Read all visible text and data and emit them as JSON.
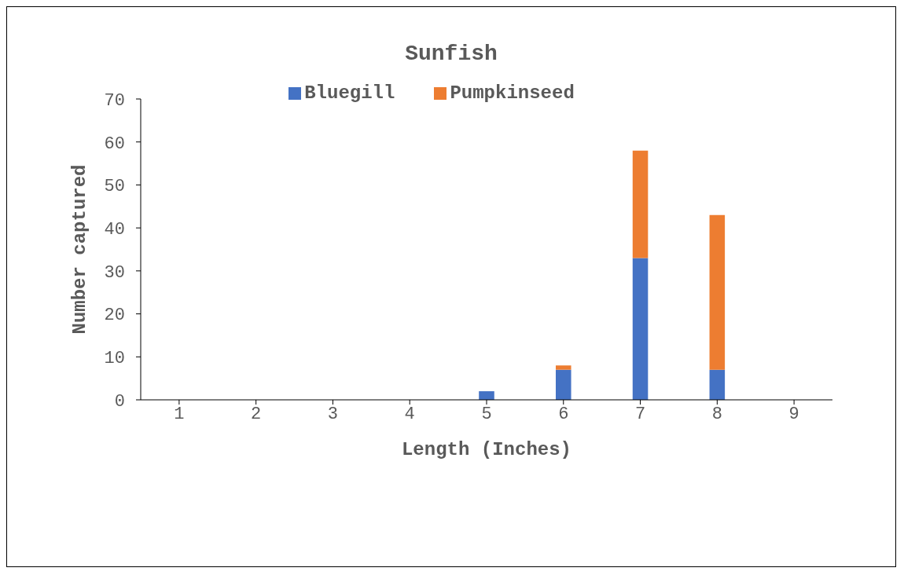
{
  "chart_data": {
    "type": "bar",
    "title": "Sunfish",
    "xlabel": "Length (Inches)",
    "ylabel": "Number captured",
    "categories": [
      "1",
      "2",
      "3",
      "4",
      "5",
      "6",
      "7",
      "8",
      "9"
    ],
    "stacked": true,
    "series": [
      {
        "name": "Bluegill",
        "color": "#4472c4",
        "values": [
          0,
          0,
          0,
          0,
          2,
          7,
          33,
          7,
          0
        ]
      },
      {
        "name": "Pumpkinseed",
        "color": "#ed7d31",
        "values": [
          0,
          0,
          0,
          0,
          0,
          1,
          25,
          36,
          0
        ]
      }
    ],
    "ylim": [
      0,
      70
    ],
    "yticks": [
      0,
      10,
      20,
      30,
      40,
      50,
      60,
      70
    ],
    "grid": false,
    "legend": "top"
  }
}
